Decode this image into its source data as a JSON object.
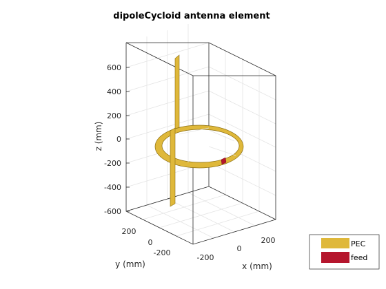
{
  "figure": {
    "title": "dipoleCycloid antenna element"
  },
  "axes": {
    "z_label": "z (mm)",
    "x_label": "x (mm)",
    "y_label": "y (mm)",
    "z_ticks": [
      "600",
      "400",
      "200",
      "0",
      "-200",
      "-400",
      "-600"
    ],
    "x_ticks": [
      "-200",
      "0",
      "200"
    ],
    "y_ticks": [
      "200",
      "0",
      "-200"
    ]
  },
  "legend": {
    "items": [
      {
        "label": "PEC",
        "color": "#dfb83a"
      },
      {
        "label": "feed",
        "color": "#b5162d"
      }
    ]
  },
  "colors": {
    "metal": "#dfb83a",
    "metal_edge": "#8a6d10",
    "feed": "#b5162d"
  }
}
